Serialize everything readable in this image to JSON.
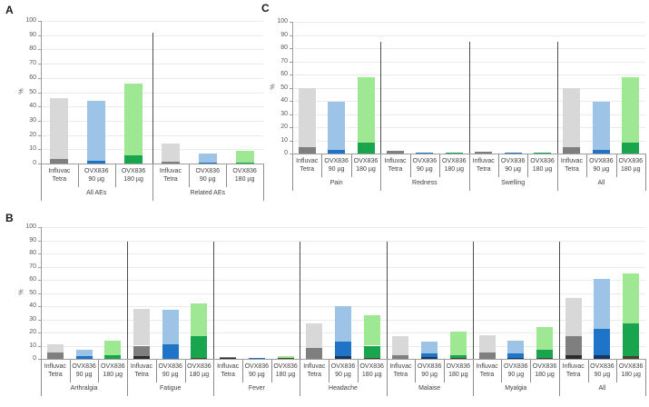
{
  "figure_background": "#ffffff",
  "palette": {
    "gray": {
      "light": "#d8d8d8",
      "mid": "#7f7f7f",
      "dark": "#2e2b2b"
    },
    "blue": {
      "light": "#9dc3e6",
      "mid": "#2074c8",
      "dark": "#16355f"
    },
    "green": {
      "light": "#9ee894",
      "mid": "#18a54e",
      "dark": "#46422c"
    }
  },
  "vaccines": [
    {
      "label_line1": "Influvac",
      "label_line2": "Tetra",
      "family": "gray"
    },
    {
      "label_line1": "OVX836",
      "label_line2": "90 µg",
      "family": "blue"
    },
    {
      "label_line1": "OVX836",
      "label_line2": "180 µg",
      "family": "green"
    }
  ],
  "chart_data": [
    {
      "type": "bar",
      "stacked": true,
      "panel_letter": "A",
      "ylabel": "%",
      "ylim": [
        0,
        100
      ],
      "yticks": [
        0,
        10,
        20,
        30,
        40,
        50,
        60,
        70,
        80,
        90,
        100
      ],
      "grid": true,
      "divider_top_value": 92,
      "series_labels": [
        "Influvac Tetra",
        "OVX836 90 µg",
        "OVX836 180 µg"
      ],
      "categories": [
        "All AEs",
        "Related AEs"
      ],
      "groups": [
        {
          "label": "All AEs",
          "bars": [
            {
              "stack": [
                [
                  "mid",
                  3
                ],
                [
                  "light",
                  43
                ]
              ]
            },
            {
              "stack": [
                [
                  "mid",
                  2
                ],
                [
                  "light",
                  42
                ]
              ]
            },
            {
              "stack": [
                [
                  "mid",
                  6
                ],
                [
                  "light",
                  50
                ]
              ]
            }
          ]
        },
        {
          "label": "Related AEs",
          "bars": [
            {
              "stack": [
                [
                  "mid",
                  1
                ],
                [
                  "light",
                  13
                ]
              ]
            },
            {
              "stack": [
                [
                  "mid",
                  0.5
                ],
                [
                  "light",
                  6.5
                ]
              ]
            },
            {
              "stack": [
                [
                  "mid",
                  0.5
                ],
                [
                  "light",
                  8.5
                ]
              ]
            }
          ]
        }
      ]
    },
    {
      "type": "bar",
      "stacked": true,
      "panel_letter": "B",
      "ylabel": "%",
      "ylim": [
        0,
        100
      ],
      "yticks": [
        0,
        10,
        20,
        30,
        40,
        50,
        60,
        70,
        80,
        90,
        100
      ],
      "grid": true,
      "divider_top_value": 89,
      "series_labels": [
        "Influvac Tetra",
        "OVX836 90 µg",
        "OVX836 180 µg"
      ],
      "categories": [
        "Arthralgia",
        "Fatigue",
        "Fever",
        "Headache",
        "Malaise",
        "Myalgia",
        "All"
      ],
      "groups": [
        {
          "label": "Arthralgia",
          "bars": [
            {
              "stack": [
                [
                  "mid",
                  5
                ],
                [
                  "light",
                  6
                ]
              ]
            },
            {
              "stack": [
                [
                  "mid",
                  2
                ],
                [
                  "light",
                  5
                ]
              ]
            },
            {
              "stack": [
                [
                  "mid",
                  3
                ],
                [
                  "light",
                  11
                ]
              ]
            }
          ]
        },
        {
          "label": "Fatigue",
          "bars": [
            {
              "stack": [
                [
                  "dark",
                  2
                ],
                [
                  "mid",
                  8
                ],
                [
                  "light",
                  28
                ]
              ]
            },
            {
              "stack": [
                [
                  "mid",
                  11
                ],
                [
                  "light",
                  26
                ]
              ]
            },
            {
              "stack": [
                [
                  "dark",
                  1
                ],
                [
                  "mid",
                  16
                ],
                [
                  "light",
                  25
                ]
              ]
            }
          ]
        },
        {
          "label": "Fever",
          "bars": [
            {
              "stack": [
                [
                  "dark",
                  1
                ],
                [
                  "mid",
                  0.5
                ]
              ]
            },
            {
              "stack": [
                [
                  "mid",
                  0.5
                ]
              ]
            },
            {
              "stack": [
                [
                  "dark",
                  0.5
                ],
                [
                  "light",
                  1.5
                ]
              ]
            }
          ]
        },
        {
          "label": "Headache",
          "bars": [
            {
              "stack": [
                [
                  "mid",
                  8
                ],
                [
                  "light",
                  19
                ]
              ]
            },
            {
              "stack": [
                [
                  "dark",
                  2
                ],
                [
                  "mid",
                  11
                ],
                [
                  "light",
                  27
                ]
              ]
            },
            {
              "stack": [
                [
                  "dark",
                  1
                ],
                [
                  "mid",
                  9
                ],
                [
                  "light",
                  23
                ]
              ]
            }
          ]
        },
        {
          "label": "Malaise",
          "bars": [
            {
              "stack": [
                [
                  "mid",
                  3
                ],
                [
                  "light",
                  14
                ]
              ]
            },
            {
              "stack": [
                [
                  "dark",
                  1.5
                ],
                [
                  "mid",
                  2.5
                ],
                [
                  "light",
                  9
                ]
              ]
            },
            {
              "stack": [
                [
                  "dark",
                  1
                ],
                [
                  "mid",
                  2
                ],
                [
                  "light",
                  18
                ]
              ]
            }
          ]
        },
        {
          "label": "Myalgia",
          "bars": [
            {
              "stack": [
                [
                  "mid",
                  5
                ],
                [
                  "light",
                  13
                ]
              ]
            },
            {
              "stack": [
                [
                  "dark",
                  1
                ],
                [
                  "mid",
                  3
                ],
                [
                  "light",
                  10
                ]
              ]
            },
            {
              "stack": [
                [
                  "dark",
                  1
                ],
                [
                  "mid",
                  6
                ],
                [
                  "light",
                  17
                ]
              ]
            }
          ]
        },
        {
          "label": "All",
          "bars": [
            {
              "stack": [
                [
                  "dark",
                  3
                ],
                [
                  "mid",
                  14
                ],
                [
                  "light",
                  29
                ]
              ]
            },
            {
              "stack": [
                [
                  "dark",
                  3
                ],
                [
                  "mid",
                  20
                ],
                [
                  "light",
                  38
                ]
              ]
            },
            {
              "stack": [
                [
                  "dark",
                  2
                ],
                [
                  "mid",
                  25
                ],
                [
                  "light",
                  38
                ]
              ]
            }
          ]
        }
      ]
    },
    {
      "type": "bar",
      "stacked": true,
      "panel_letter": "C",
      "ylabel": "%",
      "ylim": [
        0,
        100
      ],
      "yticks": [
        0,
        10,
        20,
        30,
        40,
        50,
        60,
        70,
        80,
        90,
        100
      ],
      "grid": true,
      "divider_top_value": 85,
      "series_labels": [
        "Influvac Tetra",
        "OVX836 90 µg",
        "OVX836 180 µg"
      ],
      "categories": [
        "Pain",
        "Redness",
        "Swelling",
        "All"
      ],
      "groups": [
        {
          "label": "Pain",
          "bars": [
            {
              "stack": [
                [
                  "mid",
                  5
                ],
                [
                  "light",
                  45
                ]
              ]
            },
            {
              "stack": [
                [
                  "mid",
                  3
                ],
                [
                  "light",
                  36
                ]
              ]
            },
            {
              "stack": [
                [
                  "mid",
                  8
                ],
                [
                  "light",
                  50
                ]
              ]
            }
          ]
        },
        {
          "label": "Redness",
          "bars": [
            {
              "stack": [
                [
                  "mid",
                  2
                ]
              ]
            },
            {
              "stack": [
                [
                  "mid",
                  0.4
                ]
              ]
            },
            {
              "stack": [
                [
                  "mid",
                  1
                ]
              ]
            }
          ]
        },
        {
          "label": "Swelling",
          "bars": [
            {
              "stack": [
                [
                  "mid",
                  1.5
                ]
              ]
            },
            {
              "stack": [
                [
                  "mid",
                  0.4
                ]
              ]
            },
            {
              "stack": [
                [
                  "mid",
                  1
                ]
              ]
            }
          ]
        },
        {
          "label": "All",
          "bars": [
            {
              "stack": [
                [
                  "mid",
                  5
                ],
                [
                  "light",
                  45
                ]
              ]
            },
            {
              "stack": [
                [
                  "mid",
                  3
                ],
                [
                  "light",
                  36
                ]
              ]
            },
            {
              "stack": [
                [
                  "mid",
                  8
                ],
                [
                  "light",
                  50
                ]
              ]
            }
          ]
        }
      ]
    }
  ]
}
